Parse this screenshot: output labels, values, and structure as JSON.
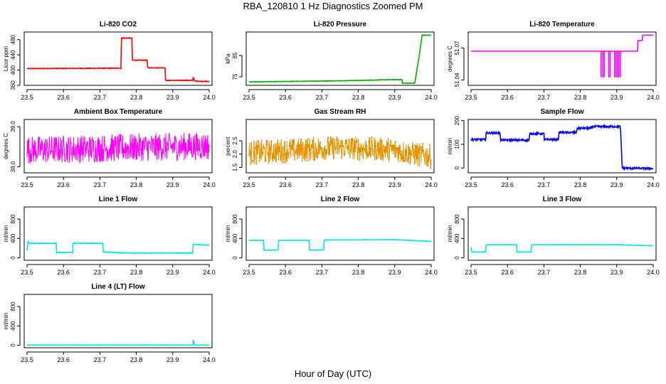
{
  "figure": {
    "title": "RBA_120810  1 Hz Diagnostics Zoomed PM",
    "xlabel": "Hour of Day (UTC)"
  },
  "chart_data": [
    {
      "id": "co2",
      "type": "line",
      "title": "Li-820 CO2",
      "ylabel": "Licor ppm",
      "xlim": [
        23.5,
        24.0
      ],
      "ylim": [
        360,
        500
      ],
      "yticks": [
        360,
        400,
        440,
        480
      ],
      "xticks": [
        23.5,
        23.6,
        23.7,
        23.8,
        23.9,
        24.0
      ],
      "color": "#ff0000",
      "noise": 0.8,
      "x": [
        23.5,
        23.758,
        23.759,
        23.788,
        23.789,
        23.83,
        23.831,
        23.879,
        23.88,
        23.955,
        23.956,
        23.96,
        23.961,
        24.0
      ],
      "y": [
        404,
        405,
        484,
        484,
        426,
        426,
        406,
        406,
        373,
        373,
        382,
        373,
        371,
        370
      ]
    },
    {
      "id": "pressure",
      "type": "line",
      "title": "Li-820 Pressure",
      "ylabel": "kPa",
      "xlim": [
        23.5,
        24.0
      ],
      "ylim": [
        71,
        96
      ],
      "yticks": [
        75,
        85
      ],
      "xticks": [
        23.5,
        23.6,
        23.7,
        23.8,
        23.9,
        24.0
      ],
      "color": "#00b000",
      "noise": 0.1,
      "x": [
        23.5,
        23.6,
        23.7,
        23.8,
        23.87,
        23.92,
        23.921,
        23.955,
        23.97,
        23.975,
        24.0
      ],
      "y": [
        72.6,
        72.8,
        73.0,
        73.3,
        73.6,
        73.7,
        72.0,
        72.0,
        88.0,
        94.5,
        94.5
      ]
    },
    {
      "id": "temperature",
      "type": "line",
      "title": "Li-820 Temperature",
      "ylabel": "degrees C",
      "xlim": [
        23.5,
        24.0
      ],
      "ylim": [
        51.035,
        51.085
      ],
      "yticks": [
        51.04,
        51.07
      ],
      "xticks": [
        23.5,
        23.6,
        23.7,
        23.8,
        23.9,
        24.0
      ],
      "color": "#ff00ff",
      "noise": 0,
      "x": [
        23.5,
        23.957,
        23.958,
        23.97,
        23.971,
        24.0
      ],
      "y": [
        51.067,
        51.067,
        51.077,
        51.077,
        51.082,
        51.082
      ],
      "spikes_down": [
        23.857,
        23.862,
        23.866,
        23.878,
        23.882,
        23.894,
        23.898,
        23.902,
        23.906,
        23.91
      ],
      "spike_low": 51.0425
    },
    {
      "id": "boxtemp",
      "type": "line",
      "title": "Ambient Box Temperature",
      "ylabel": "degrees C",
      "xlim": [
        23.5,
        24.0
      ],
      "ylim": [
        37.85,
        39.18
      ],
      "yticks": [
        38.0,
        39.0
      ],
      "xticks": [
        23.5,
        23.6,
        23.7,
        23.8,
        23.9,
        24.0
      ],
      "color": "#ff00ff",
      "noise": 0.35,
      "x": [
        23.5,
        24.0
      ],
      "y": [
        38.42,
        38.52
      ]
    },
    {
      "id": "rh",
      "type": "line",
      "title": "Gas Stream RH",
      "ylabel": "percent",
      "xlim": [
        23.5,
        24.0
      ],
      "ylim": [
        1.3,
        3.3
      ],
      "yticks": [
        1.5,
        2.0,
        2.5
      ],
      "xticks": [
        23.5,
        23.6,
        23.7,
        23.8,
        23.9,
        24.0
      ],
      "color": "#e69500",
      "noise": 0.45,
      "x": [
        23.5,
        23.75,
        23.9,
        24.0
      ],
      "y": [
        2.05,
        2.25,
        2.15,
        1.9
      ]
    },
    {
      "id": "sampleflow",
      "type": "line",
      "title": "Sample Flow",
      "ylabel": "ml/min",
      "xlim": [
        23.5,
        24.0
      ],
      "ylim": [
        -20,
        205
      ],
      "yticks": [
        0,
        100,
        200
      ],
      "xticks": [
        23.5,
        23.6,
        23.7,
        23.8,
        23.9,
        24.0
      ],
      "color": "#0000ff",
      "noise": 4,
      "x": [
        23.5,
        23.54,
        23.541,
        23.58,
        23.581,
        23.66,
        23.661,
        23.7,
        23.701,
        23.74,
        23.741,
        23.79,
        23.791,
        23.83,
        23.831,
        23.91,
        23.915,
        24.0
      ],
      "y": [
        120,
        120,
        148,
        148,
        118,
        118,
        145,
        145,
        120,
        120,
        150,
        150,
        168,
        168,
        175,
        175,
        0,
        -2
      ]
    },
    {
      "id": "line1",
      "type": "line",
      "title": "Line 1 Flow",
      "ylabel": "ml/min",
      "xlim": [
        23.5,
        24.0
      ],
      "ylim": [
        -50,
        1050
      ],
      "yticks": [
        0,
        400,
        800
      ],
      "xticks": [
        23.5,
        23.6,
        23.7,
        23.8,
        23.9,
        24.0
      ],
      "color": "#00e5e5",
      "noise": 5,
      "x": [
        23.5,
        23.503,
        23.504,
        23.58,
        23.581,
        23.625,
        23.626,
        23.708,
        23.709,
        23.75,
        23.751,
        23.955,
        23.956,
        24.0
      ],
      "y": [
        150,
        360,
        300,
        300,
        110,
        110,
        300,
        300,
        120,
        110,
        100,
        100,
        280,
        260
      ]
    },
    {
      "id": "line2",
      "type": "line",
      "title": "Line 2 Flow",
      "ylabel": "ml/min",
      "xlim": [
        23.5,
        24.0
      ],
      "ylim": [
        -50,
        1050
      ],
      "yticks": [
        0,
        400,
        800
      ],
      "xticks": [
        23.5,
        23.6,
        23.7,
        23.8,
        23.9,
        24.0
      ],
      "color": "#00e5e5",
      "noise": 3,
      "x": [
        23.5,
        23.54,
        23.541,
        23.58,
        23.581,
        23.665,
        23.666,
        23.705,
        23.706,
        23.8,
        23.9,
        24.0
      ],
      "y": [
        360,
        360,
        160,
        160,
        360,
        360,
        160,
        160,
        370,
        370,
        375,
        340
      ]
    },
    {
      "id": "line3",
      "type": "line",
      "title": "Line 3 Flow",
      "ylabel": "ml/min",
      "xlim": [
        23.5,
        24.0
      ],
      "ylim": [
        -50,
        1050
      ],
      "yticks": [
        0,
        400,
        800
      ],
      "xticks": [
        23.5,
        23.6,
        23.7,
        23.8,
        23.9,
        24.0
      ],
      "color": "#00e5e5",
      "noise": 3,
      "x": [
        23.5,
        23.502,
        23.503,
        23.54,
        23.541,
        23.625,
        23.626,
        23.665,
        23.666,
        23.9,
        24.0
      ],
      "y": [
        220,
        120,
        120,
        120,
        270,
        270,
        120,
        120,
        270,
        270,
        250
      ]
    },
    {
      "id": "line4",
      "type": "line",
      "title": "Line 4 (LT) Flow",
      "ylabel": "ml/min",
      "xlim": [
        23.5,
        24.0
      ],
      "ylim": [
        -50,
        1050
      ],
      "yticks": [
        0,
        400,
        800
      ],
      "xticks": [
        23.5,
        23.6,
        23.7,
        23.8,
        23.9,
        24.0
      ],
      "color": "#00e5e5",
      "noise": 2,
      "x": [
        23.5,
        23.955,
        23.957,
        23.96,
        24.0
      ],
      "y": [
        5,
        5,
        110,
        5,
        5
      ]
    }
  ]
}
